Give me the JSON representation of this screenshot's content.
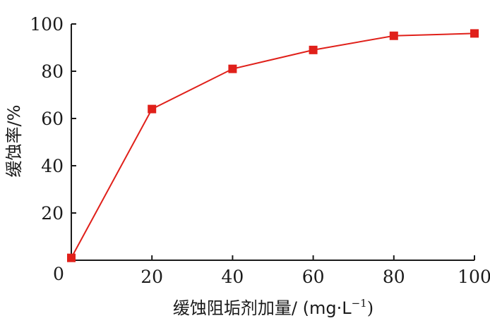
{
  "chart_data": {
    "type": "line",
    "x": [
      0,
      20,
      40,
      60,
      80,
      100
    ],
    "series": [
      {
        "values": [
          1,
          64,
          81,
          89,
          95,
          96
        ],
        "color": "#e0201a",
        "marker": "square"
      }
    ],
    "xlabel": {
      "main": "缓蚀阻垢剂加量/ (mg·L",
      "exponent": "−1",
      "close": ")"
    },
    "ylabel": "缓蚀率/%",
    "xlim": [
      0,
      100
    ],
    "ylim": [
      0,
      100
    ],
    "xticks": [
      20,
      40,
      60,
      80,
      100
    ],
    "yticks": [
      0,
      20,
      40,
      60,
      80,
      100
    ],
    "origin_label": "0",
    "grid": false,
    "legend": "none",
    "axis_color": "#1a1a1a"
  }
}
